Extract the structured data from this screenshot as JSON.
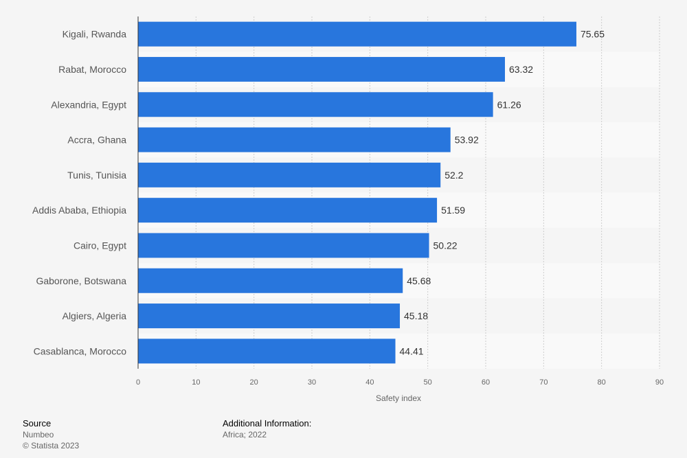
{
  "chart_data": {
    "type": "bar",
    "orientation": "horizontal",
    "categories": [
      "Kigali, Rwanda",
      "Rabat, Morocco",
      "Alexandria, Egypt",
      "Accra, Ghana",
      "Tunis, Tunisia",
      "Addis Ababa, Ethiopia",
      "Cairo, Egypt",
      "Gaborone, Botswana",
      "Algiers, Algeria",
      "Casablanca, Morocco"
    ],
    "values": [
      75.65,
      63.32,
      61.26,
      53.92,
      52.2,
      51.59,
      50.22,
      45.68,
      45.18,
      44.41
    ],
    "value_labels": [
      "75.65",
      "63.32",
      "61.26",
      "53.92",
      "52.2",
      "51.59",
      "50.22",
      "45.68",
      "45.18",
      "44.41"
    ],
    "xlabel": "Safety index",
    "xlim": [
      0,
      90
    ],
    "xticks": [
      0,
      10,
      20,
      30,
      40,
      50,
      60,
      70,
      80,
      90
    ],
    "grid": true,
    "bar_color": "#2876dd",
    "stripe_color": "#f9f9f9",
    "grid_color": "#cccccc"
  },
  "footer": {
    "source_heading": "Source",
    "source_name": "Numbeo",
    "copyright": "© Statista 2023",
    "info_heading": "Additional Information:",
    "info_text": "Africa; 2022"
  }
}
